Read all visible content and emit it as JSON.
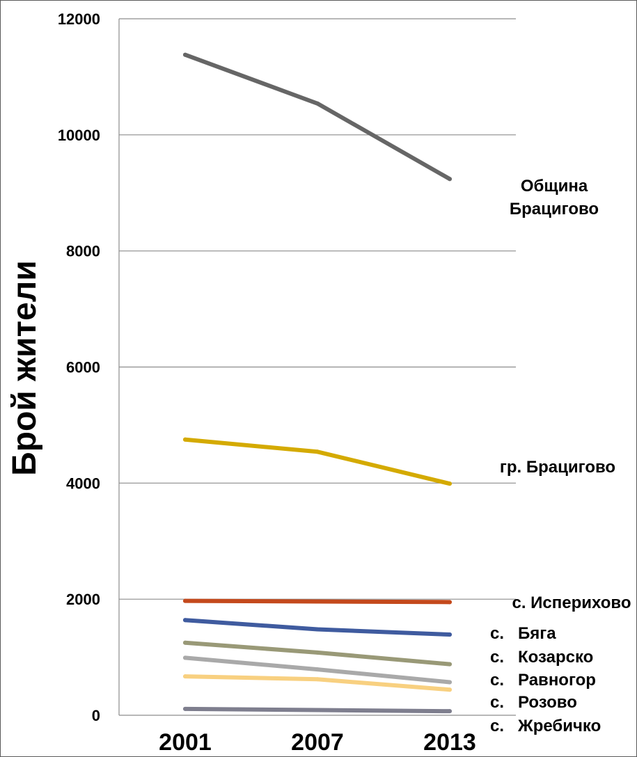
{
  "chart_data": {
    "type": "line",
    "title": "",
    "xlabel": "",
    "ylabel": "Брой жители",
    "x": [
      "2001",
      "2007",
      "2013"
    ],
    "ylim": [
      0,
      12000
    ],
    "yticks": [
      "0",
      "2000",
      "4000",
      "6000",
      "8000",
      "10000",
      "12000"
    ],
    "grid": true,
    "legend": "labels at right end of each line",
    "series": [
      {
        "name": "Община Брацигово",
        "label_lines": [
          "Община",
          "Брацигово"
        ],
        "color": "#666666",
        "values": [
          11380,
          10540,
          9240
        ]
      },
      {
        "name": "гр. Брацигово",
        "label_lines": [
          "гр. Брацигово"
        ],
        "color": "#d4aa00",
        "values": [
          4750,
          4540,
          3990
        ]
      },
      {
        "name": "с. Исперихово",
        "label_lines": [
          "с. Исперихово"
        ],
        "color": "#c4491c",
        "values": [
          1970,
          1960,
          1950
        ]
      },
      {
        "name": "с. Бяга",
        "label_lines": [
          "с.   Бяга"
        ],
        "color": "#3f5b9f",
        "values": [
          1640,
          1480,
          1390
        ]
      },
      {
        "name": "с. Козарско",
        "label_lines": [
          "с.   Козарско"
        ],
        "color": "#999977",
        "values": [
          1250,
          1080,
          880
        ]
      },
      {
        "name": "с. Равногор",
        "label_lines": [
          "с.   Равногор"
        ],
        "color": "#a9a9a9",
        "values": [
          990,
          790,
          570
        ]
      },
      {
        "name": "с. Розово",
        "label_lines": [
          "с.   Розово"
        ],
        "color": "#f8d080",
        "values": [
          670,
          620,
          440
        ]
      },
      {
        "name": "с. Жребичко",
        "label_lines": [
          "с.   Жребичко"
        ],
        "color": "#7e7e8e",
        "values": [
          110,
          90,
          70
        ]
      }
    ]
  }
}
